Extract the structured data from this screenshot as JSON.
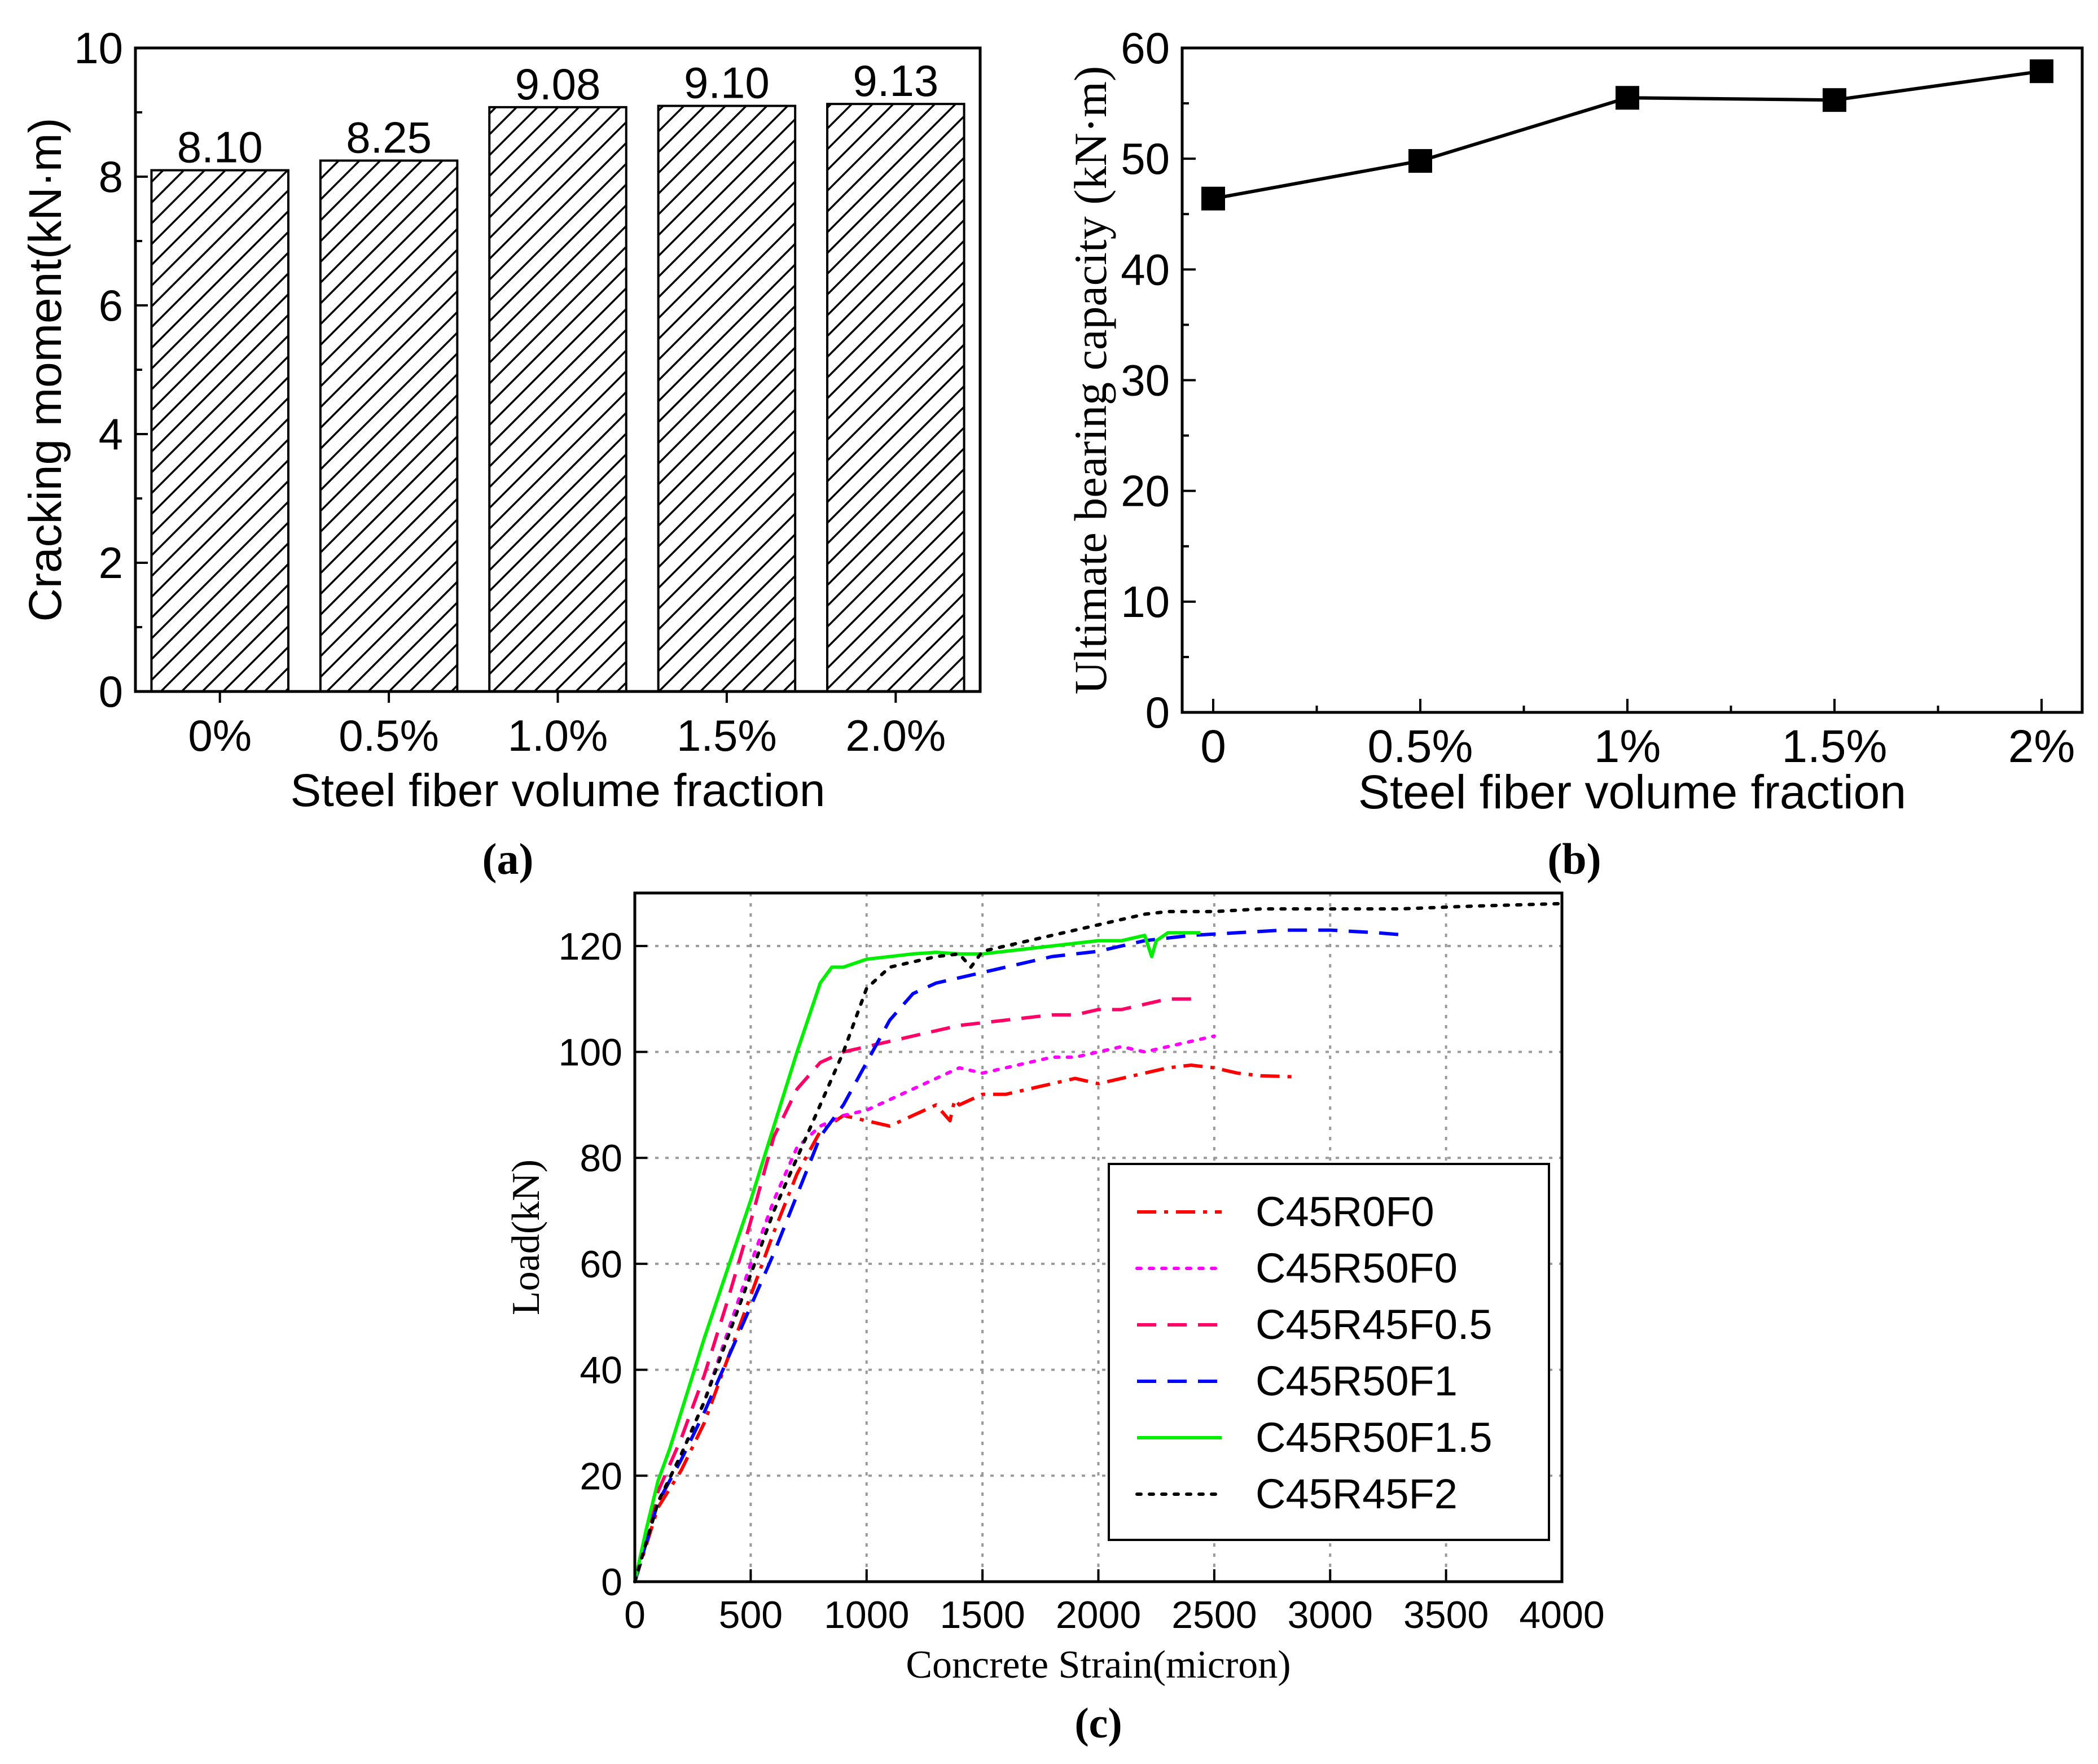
{
  "chart_data": [
    {
      "panel": "a",
      "type": "bar",
      "caption": "(a)",
      "categories": [
        "0%",
        "0.5%",
        "1.0%",
        "1.5%",
        "2.0%"
      ],
      "values": [
        8.1,
        8.25,
        9.08,
        9.1,
        9.13
      ],
      "data_labels": [
        "8.10",
        "8.25",
        "9.08",
        "9.10",
        "9.13"
      ],
      "xlabel": "Steel fiber volume fraction",
      "ylabel": "Cracking moment(kN·m)",
      "ylim": [
        0,
        10
      ],
      "yticks": [
        0,
        2,
        4,
        6,
        8,
        10
      ],
      "ytick_labels": [
        "0",
        "2",
        "4",
        "6",
        "8",
        "10"
      ],
      "bar_fill": "hatched"
    },
    {
      "panel": "b",
      "type": "line",
      "caption": "(b)",
      "categories": [
        "0",
        "0.5%",
        "1%",
        "1.5%",
        "2%"
      ],
      "values": [
        46.4,
        49.8,
        55.5,
        55.3,
        57.9
      ],
      "xlabel": "Steel fiber volume fraction",
      "ylabel": "Ultimate bearing capacity (kN·m)",
      "ylim": [
        0,
        60
      ],
      "yticks": [
        0,
        10,
        20,
        30,
        40,
        50,
        60
      ],
      "ytick_labels": [
        "0",
        "10",
        "20",
        "30",
        "40",
        "50",
        "60"
      ],
      "marker": "square"
    },
    {
      "panel": "c",
      "type": "line",
      "caption": "(c)",
      "xlabel": "Concrete Strain(micron)",
      "ylabel": "Load(kN)",
      "xlim": [
        0,
        4000
      ],
      "ylim": [
        0,
        130
      ],
      "xticks": [
        0,
        500,
        1000,
        1500,
        2000,
        2500,
        3000,
        3500,
        4000
      ],
      "xtick_labels": [
        "0",
        "500",
        "1000",
        "1500",
        "2000",
        "2500",
        "3000",
        "3500",
        "4000"
      ],
      "yticks": [
        0,
        20,
        40,
        60,
        80,
        100,
        120
      ],
      "ytick_labels": [
        "0",
        "20",
        "40",
        "60",
        "80",
        "100",
        "120"
      ],
      "grid": true,
      "legend_position": "right",
      "series": [
        {
          "name": "C45R0F0",
          "color": "#ff0000",
          "dash": "dashdot",
          "x": [
            0,
            100,
            200,
            300,
            400,
            500,
            600,
            700,
            800,
            900,
            1000,
            1100,
            1200,
            1300,
            1360,
            1380,
            1400,
            1500,
            1600,
            1700,
            1800,
            1900,
            2000,
            2100,
            2200,
            2300,
            2400,
            2500,
            2600,
            2700,
            2850
          ],
          "y": [
            0,
            14,
            21,
            30,
            42,
            54,
            66,
            77,
            85,
            88,
            87,
            86,
            88,
            90,
            87,
            91,
            90,
            92,
            92,
            93,
            94,
            95,
            94,
            95,
            96,
            97,
            97.5,
            97,
            96,
            95.5,
            95.3
          ]
        },
        {
          "name": "C45R50F0",
          "color": "#ff00ff",
          "dash": "dot",
          "x": [
            0,
            100,
            200,
            300,
            400,
            500,
            600,
            700,
            800,
            900,
            1000,
            1100,
            1200,
            1300,
            1400,
            1500,
            1600,
            1700,
            1800,
            1900,
            2000,
            2100,
            2200,
            2300,
            2400,
            2500
          ],
          "y": [
            0,
            15,
            24,
            34,
            47,
            60,
            72,
            82,
            86,
            88,
            89,
            91,
            93,
            95,
            97,
            96,
            97,
            98,
            99,
            99,
            100,
            101,
            100,
            101,
            102,
            103
          ]
        },
        {
          "name": "C45R45F0.5",
          "color": "#ff0066",
          "dash": "dash",
          "x": [
            0,
            100,
            200,
            300,
            400,
            500,
            600,
            700,
            800,
            900,
            1000,
            1100,
            1200,
            1400,
            1600,
            1800,
            1900,
            2000,
            2100,
            2200,
            2300,
            2400
          ],
          "y": [
            0,
            17,
            27,
            39,
            53,
            68,
            84,
            93,
            98,
            100,
            101,
            102,
            103,
            105,
            106,
            107,
            107,
            108,
            108,
            109,
            110,
            110
          ]
        },
        {
          "name": "C45R50F1",
          "color": "#0000ff",
          "dash": "dash",
          "x": [
            0,
            100,
            200,
            300,
            400,
            500,
            600,
            700,
            800,
            900,
            1000,
            1100,
            1200,
            1300,
            1400,
            1500,
            1600,
            1700,
            1800,
            1900,
            2000,
            2100,
            2200,
            2300,
            2400,
            2600,
            2800,
            3000,
            3200,
            3340
          ],
          "y": [
            0,
            15,
            23,
            32,
            42,
            52,
            62,
            73,
            84,
            90,
            98,
            106,
            111,
            113,
            114,
            115,
            116,
            117,
            118,
            118.5,
            119,
            120,
            121,
            121.5,
            122,
            122.5,
            123,
            123,
            122.5,
            122
          ]
        },
        {
          "name": "C45R50F1.5",
          "color": "#00ee00",
          "dash": "solid",
          "x": [
            0,
            50,
            100,
            150,
            200,
            300,
            400,
            500,
            600,
            700,
            800,
            850,
            900,
            1000,
            1100,
            1200,
            1300,
            1400,
            1500,
            1600,
            1700,
            1800,
            1900,
            2000,
            2100,
            2200,
            2230,
            2250,
            2300,
            2440
          ],
          "y": [
            0,
            10,
            19,
            25,
            32,
            46,
            59,
            72,
            86,
            100,
            113,
            116,
            116,
            117.5,
            118,
            118.5,
            118.8,
            118.5,
            118.5,
            119,
            119.5,
            120,
            120.5,
            121,
            121,
            122,
            118,
            121,
            122.5,
            122.5
          ]
        },
        {
          "name": "C45R45F2",
          "color": "#000000",
          "dash": "dot",
          "x": [
            0,
            100,
            200,
            300,
            400,
            500,
            600,
            700,
            800,
            900,
            1000,
            1100,
            1200,
            1300,
            1400,
            1450,
            1500,
            1600,
            1700,
            1800,
            1900,
            2000,
            2100,
            2200,
            2300,
            2500,
            2700,
            3000,
            3300,
            3600,
            4000
          ],
          "y": [
            0,
            15,
            24,
            34,
            46,
            58,
            70,
            80,
            90,
            100,
            112,
            116,
            117,
            118,
            118.5,
            116,
            119,
            120,
            121,
            122,
            123,
            124,
            125,
            126,
            126.5,
            126.5,
            127,
            127,
            127,
            127.5,
            128
          ]
        }
      ]
    }
  ]
}
